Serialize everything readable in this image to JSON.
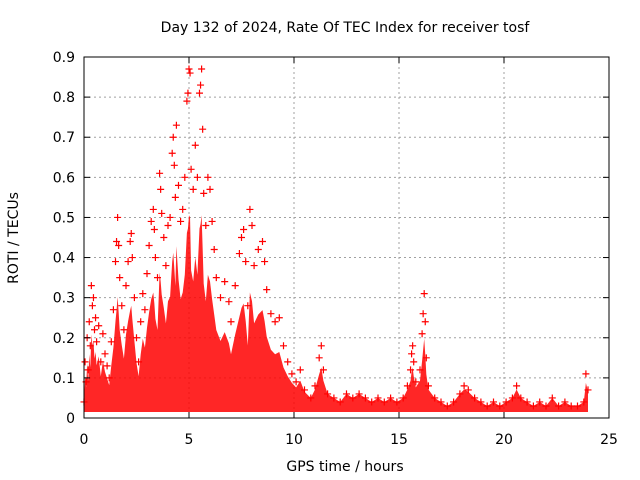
{
  "chart_data": {
    "type": "scatter",
    "title": "Day 132 of 2024, Rate Of TEC Index for receiver tosf",
    "xlabel": "GPS time / hours",
    "ylabel": "ROTI / TECUs",
    "xlim": [
      0,
      25
    ],
    "ylim": [
      0,
      0.9
    ],
    "xticks": [
      0,
      5,
      10,
      15,
      20,
      25
    ],
    "xtick_labels": [
      "0",
      "5",
      "10",
      "15",
      "20",
      "25"
    ],
    "yticks": [
      0,
      0.1,
      0.2,
      0.3,
      0.4,
      0.5,
      0.6,
      0.7,
      0.8,
      0.9
    ],
    "ytick_labels": [
      "0",
      "0.1",
      "0.2",
      "0.3",
      "0.4",
      "0.5",
      "0.6",
      "0.7",
      "0.8",
      "0.9"
    ],
    "grid": true,
    "legend": "none",
    "marker": "+",
    "color": "#ff0000",
    "series": [
      {
        "values": [
          [
            0.0,
            0.04
          ],
          [
            0.05,
            0.14
          ],
          [
            0.1,
            0.09
          ],
          [
            0.15,
            0.2
          ],
          [
            0.2,
            0.12
          ],
          [
            0.25,
            0.24
          ],
          [
            0.3,
            0.18
          ],
          [
            0.35,
            0.33
          ],
          [
            0.4,
            0.28
          ],
          [
            0.45,
            0.3
          ],
          [
            0.5,
            0.22
          ],
          [
            0.55,
            0.25
          ],
          [
            0.6,
            0.19
          ],
          [
            0.7,
            0.23
          ],
          [
            0.8,
            0.14
          ],
          [
            0.9,
            0.21
          ],
          [
            1.0,
            0.16
          ],
          [
            1.1,
            0.13
          ],
          [
            1.2,
            0.1
          ],
          [
            1.3,
            0.19
          ],
          [
            1.4,
            0.27
          ],
          [
            1.5,
            0.39
          ],
          [
            1.55,
            0.44
          ],
          [
            1.6,
            0.5
          ],
          [
            1.65,
            0.43
          ],
          [
            1.7,
            0.35
          ],
          [
            1.8,
            0.28
          ],
          [
            1.9,
            0.22
          ],
          [
            2.0,
            0.33
          ],
          [
            2.1,
            0.39
          ],
          [
            2.2,
            0.44
          ],
          [
            2.25,
            0.46
          ],
          [
            2.3,
            0.4
          ],
          [
            2.4,
            0.3
          ],
          [
            2.5,
            0.2
          ],
          [
            2.6,
            0.14
          ],
          [
            2.7,
            0.24
          ],
          [
            2.8,
            0.31
          ],
          [
            2.9,
            0.27
          ],
          [
            3.0,
            0.36
          ],
          [
            3.1,
            0.43
          ],
          [
            3.2,
            0.49
          ],
          [
            3.3,
            0.52
          ],
          [
            3.35,
            0.47
          ],
          [
            3.4,
            0.4
          ],
          [
            3.5,
            0.35
          ],
          [
            3.6,
            0.61
          ],
          [
            3.65,
            0.57
          ],
          [
            3.7,
            0.51
          ],
          [
            3.8,
            0.45
          ],
          [
            3.9,
            0.38
          ],
          [
            4.0,
            0.48
          ],
          [
            4.1,
            0.5
          ],
          [
            4.2,
            0.66
          ],
          [
            4.25,
            0.7
          ],
          [
            4.3,
            0.63
          ],
          [
            4.35,
            0.55
          ],
          [
            4.4,
            0.73
          ],
          [
            4.5,
            0.58
          ],
          [
            4.6,
            0.49
          ],
          [
            4.7,
            0.52
          ],
          [
            4.8,
            0.6
          ],
          [
            4.9,
            0.79
          ],
          [
            4.95,
            0.81
          ],
          [
            5.0,
            0.87
          ],
          [
            5.05,
            0.86
          ],
          [
            5.1,
            0.62
          ],
          [
            5.2,
            0.57
          ],
          [
            5.3,
            0.68
          ],
          [
            5.4,
            0.6
          ],
          [
            5.5,
            0.81
          ],
          [
            5.55,
            0.83
          ],
          [
            5.6,
            0.87
          ],
          [
            5.65,
            0.72
          ],
          [
            5.7,
            0.56
          ],
          [
            5.8,
            0.48
          ],
          [
            5.9,
            0.6
          ],
          [
            6.0,
            0.57
          ],
          [
            6.1,
            0.49
          ],
          [
            6.2,
            0.42
          ],
          [
            6.3,
            0.35
          ],
          [
            6.5,
            0.3
          ],
          [
            6.7,
            0.34
          ],
          [
            6.9,
            0.29
          ],
          [
            7.0,
            0.24
          ],
          [
            7.2,
            0.33
          ],
          [
            7.4,
            0.41
          ],
          [
            7.5,
            0.45
          ],
          [
            7.6,
            0.47
          ],
          [
            7.7,
            0.39
          ],
          [
            7.8,
            0.28
          ],
          [
            7.9,
            0.52
          ],
          [
            8.0,
            0.48
          ],
          [
            8.1,
            0.38
          ],
          [
            8.3,
            0.42
          ],
          [
            8.5,
            0.44
          ],
          [
            8.6,
            0.39
          ],
          [
            8.7,
            0.32
          ],
          [
            8.9,
            0.26
          ],
          [
            9.1,
            0.24
          ],
          [
            9.3,
            0.25
          ],
          [
            9.5,
            0.18
          ],
          [
            9.7,
            0.14
          ],
          [
            9.9,
            0.11
          ],
          [
            10.1,
            0.09
          ],
          [
            10.3,
            0.12
          ],
          [
            10.5,
            0.07
          ],
          [
            10.8,
            0.05
          ],
          [
            11.0,
            0.08
          ],
          [
            11.2,
            0.15
          ],
          [
            11.3,
            0.18
          ],
          [
            11.4,
            0.12
          ],
          [
            11.6,
            0.06
          ],
          [
            11.9,
            0.05
          ],
          [
            12.2,
            0.04
          ],
          [
            12.5,
            0.06
          ],
          [
            12.8,
            0.05
          ],
          [
            13.1,
            0.06
          ],
          [
            13.4,
            0.05
          ],
          [
            13.7,
            0.04
          ],
          [
            14.0,
            0.05
          ],
          [
            14.3,
            0.04
          ],
          [
            14.6,
            0.05
          ],
          [
            14.9,
            0.04
          ],
          [
            15.2,
            0.05
          ],
          [
            15.4,
            0.08
          ],
          [
            15.55,
            0.12
          ],
          [
            15.6,
            0.16
          ],
          [
            15.65,
            0.18
          ],
          [
            15.7,
            0.14
          ],
          [
            15.8,
            0.09
          ],
          [
            16.0,
            0.12
          ],
          [
            16.1,
            0.21
          ],
          [
            16.15,
            0.26
          ],
          [
            16.2,
            0.31
          ],
          [
            16.25,
            0.24
          ],
          [
            16.3,
            0.15
          ],
          [
            16.4,
            0.08
          ],
          [
            16.7,
            0.05
          ],
          [
            17.0,
            0.04
          ],
          [
            17.3,
            0.03
          ],
          [
            17.6,
            0.04
          ],
          [
            17.9,
            0.06
          ],
          [
            18.1,
            0.08
          ],
          [
            18.3,
            0.07
          ],
          [
            18.6,
            0.05
          ],
          [
            18.9,
            0.04
          ],
          [
            19.2,
            0.03
          ],
          [
            19.5,
            0.04
          ],
          [
            19.8,
            0.03
          ],
          [
            20.1,
            0.04
          ],
          [
            20.4,
            0.05
          ],
          [
            20.6,
            0.08
          ],
          [
            20.8,
            0.05
          ],
          [
            21.1,
            0.04
          ],
          [
            21.4,
            0.03
          ],
          [
            21.7,
            0.04
          ],
          [
            22.0,
            0.03
          ],
          [
            22.3,
            0.05
          ],
          [
            22.6,
            0.03
          ],
          [
            22.9,
            0.04
          ],
          [
            23.2,
            0.03
          ],
          [
            23.5,
            0.03
          ],
          [
            23.8,
            0.04
          ],
          [
            23.9,
            0.11
          ],
          [
            24.0,
            0.07
          ]
        ]
      }
    ]
  }
}
